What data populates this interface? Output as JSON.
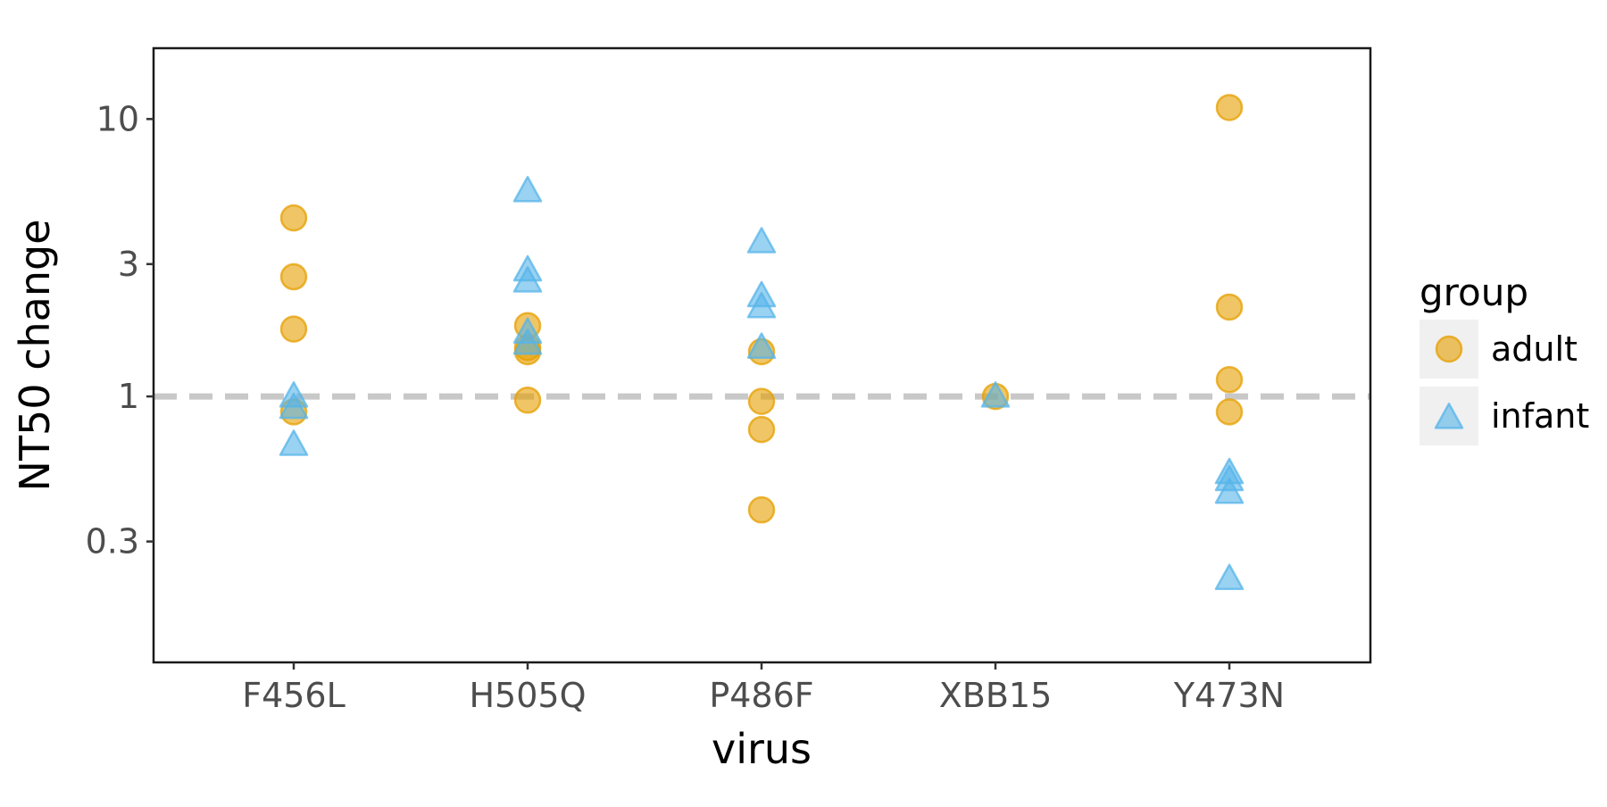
{
  "chart_data": {
    "type": "scatter",
    "xlabel": "virus",
    "ylabel": "NT50 change",
    "x_scale": "categorical",
    "y_scale": "log10",
    "categories": [
      "F456L",
      "H505Q",
      "P486F",
      "XBB15",
      "Y473N"
    ],
    "ylim": [
      0.11,
      18
    ],
    "yticks": [
      0.3,
      1,
      3,
      10
    ],
    "ytick_labels": [
      "0.3",
      "1",
      "3",
      "10"
    ],
    "reference_line": {
      "y": 1,
      "style": "dashed",
      "color": "#c8c8c8"
    },
    "grid": false,
    "legend": {
      "title": "group",
      "position": "right"
    },
    "series": [
      {
        "name": "adult",
        "marker": "circle",
        "color": "#e69f00",
        "points": [
          {
            "x": "F456L",
            "y": 4.4
          },
          {
            "x": "F456L",
            "y": 2.7
          },
          {
            "x": "F456L",
            "y": 1.75
          },
          {
            "x": "F456L",
            "y": 0.88
          },
          {
            "x": "H505Q",
            "y": 1.8
          },
          {
            "x": "H505Q",
            "y": 1.5
          },
          {
            "x": "H505Q",
            "y": 1.45
          },
          {
            "x": "H505Q",
            "y": 0.97
          },
          {
            "x": "P486F",
            "y": 1.45
          },
          {
            "x": "P486F",
            "y": 0.96
          },
          {
            "x": "P486F",
            "y": 0.76
          },
          {
            "x": "P486F",
            "y": 0.39
          },
          {
            "x": "XBB15",
            "y": 1.0
          },
          {
            "x": "Y473N",
            "y": 11.0
          },
          {
            "x": "Y473N",
            "y": 2.1
          },
          {
            "x": "Y473N",
            "y": 1.15
          },
          {
            "x": "Y473N",
            "y": 0.88
          }
        ]
      },
      {
        "name": "infant",
        "marker": "triangle",
        "color": "#56b4e9",
        "points": [
          {
            "x": "F456L",
            "y": 1.0
          },
          {
            "x": "F456L",
            "y": 0.91
          },
          {
            "x": "F456L",
            "y": 0.67
          },
          {
            "x": "H505Q",
            "y": 5.5
          },
          {
            "x": "H505Q",
            "y": 2.85
          },
          {
            "x": "H505Q",
            "y": 2.6
          },
          {
            "x": "H505Q",
            "y": 1.7
          },
          {
            "x": "H505Q",
            "y": 1.55
          },
          {
            "x": "P486F",
            "y": 3.6
          },
          {
            "x": "P486F",
            "y": 2.3
          },
          {
            "x": "P486F",
            "y": 2.1
          },
          {
            "x": "P486F",
            "y": 1.5
          },
          {
            "x": "XBB15",
            "y": 1.0
          },
          {
            "x": "Y473N",
            "y": 0.53
          },
          {
            "x": "Y473N",
            "y": 0.5
          },
          {
            "x": "Y473N",
            "y": 0.45
          },
          {
            "x": "Y473N",
            "y": 0.22
          }
        ]
      }
    ]
  }
}
